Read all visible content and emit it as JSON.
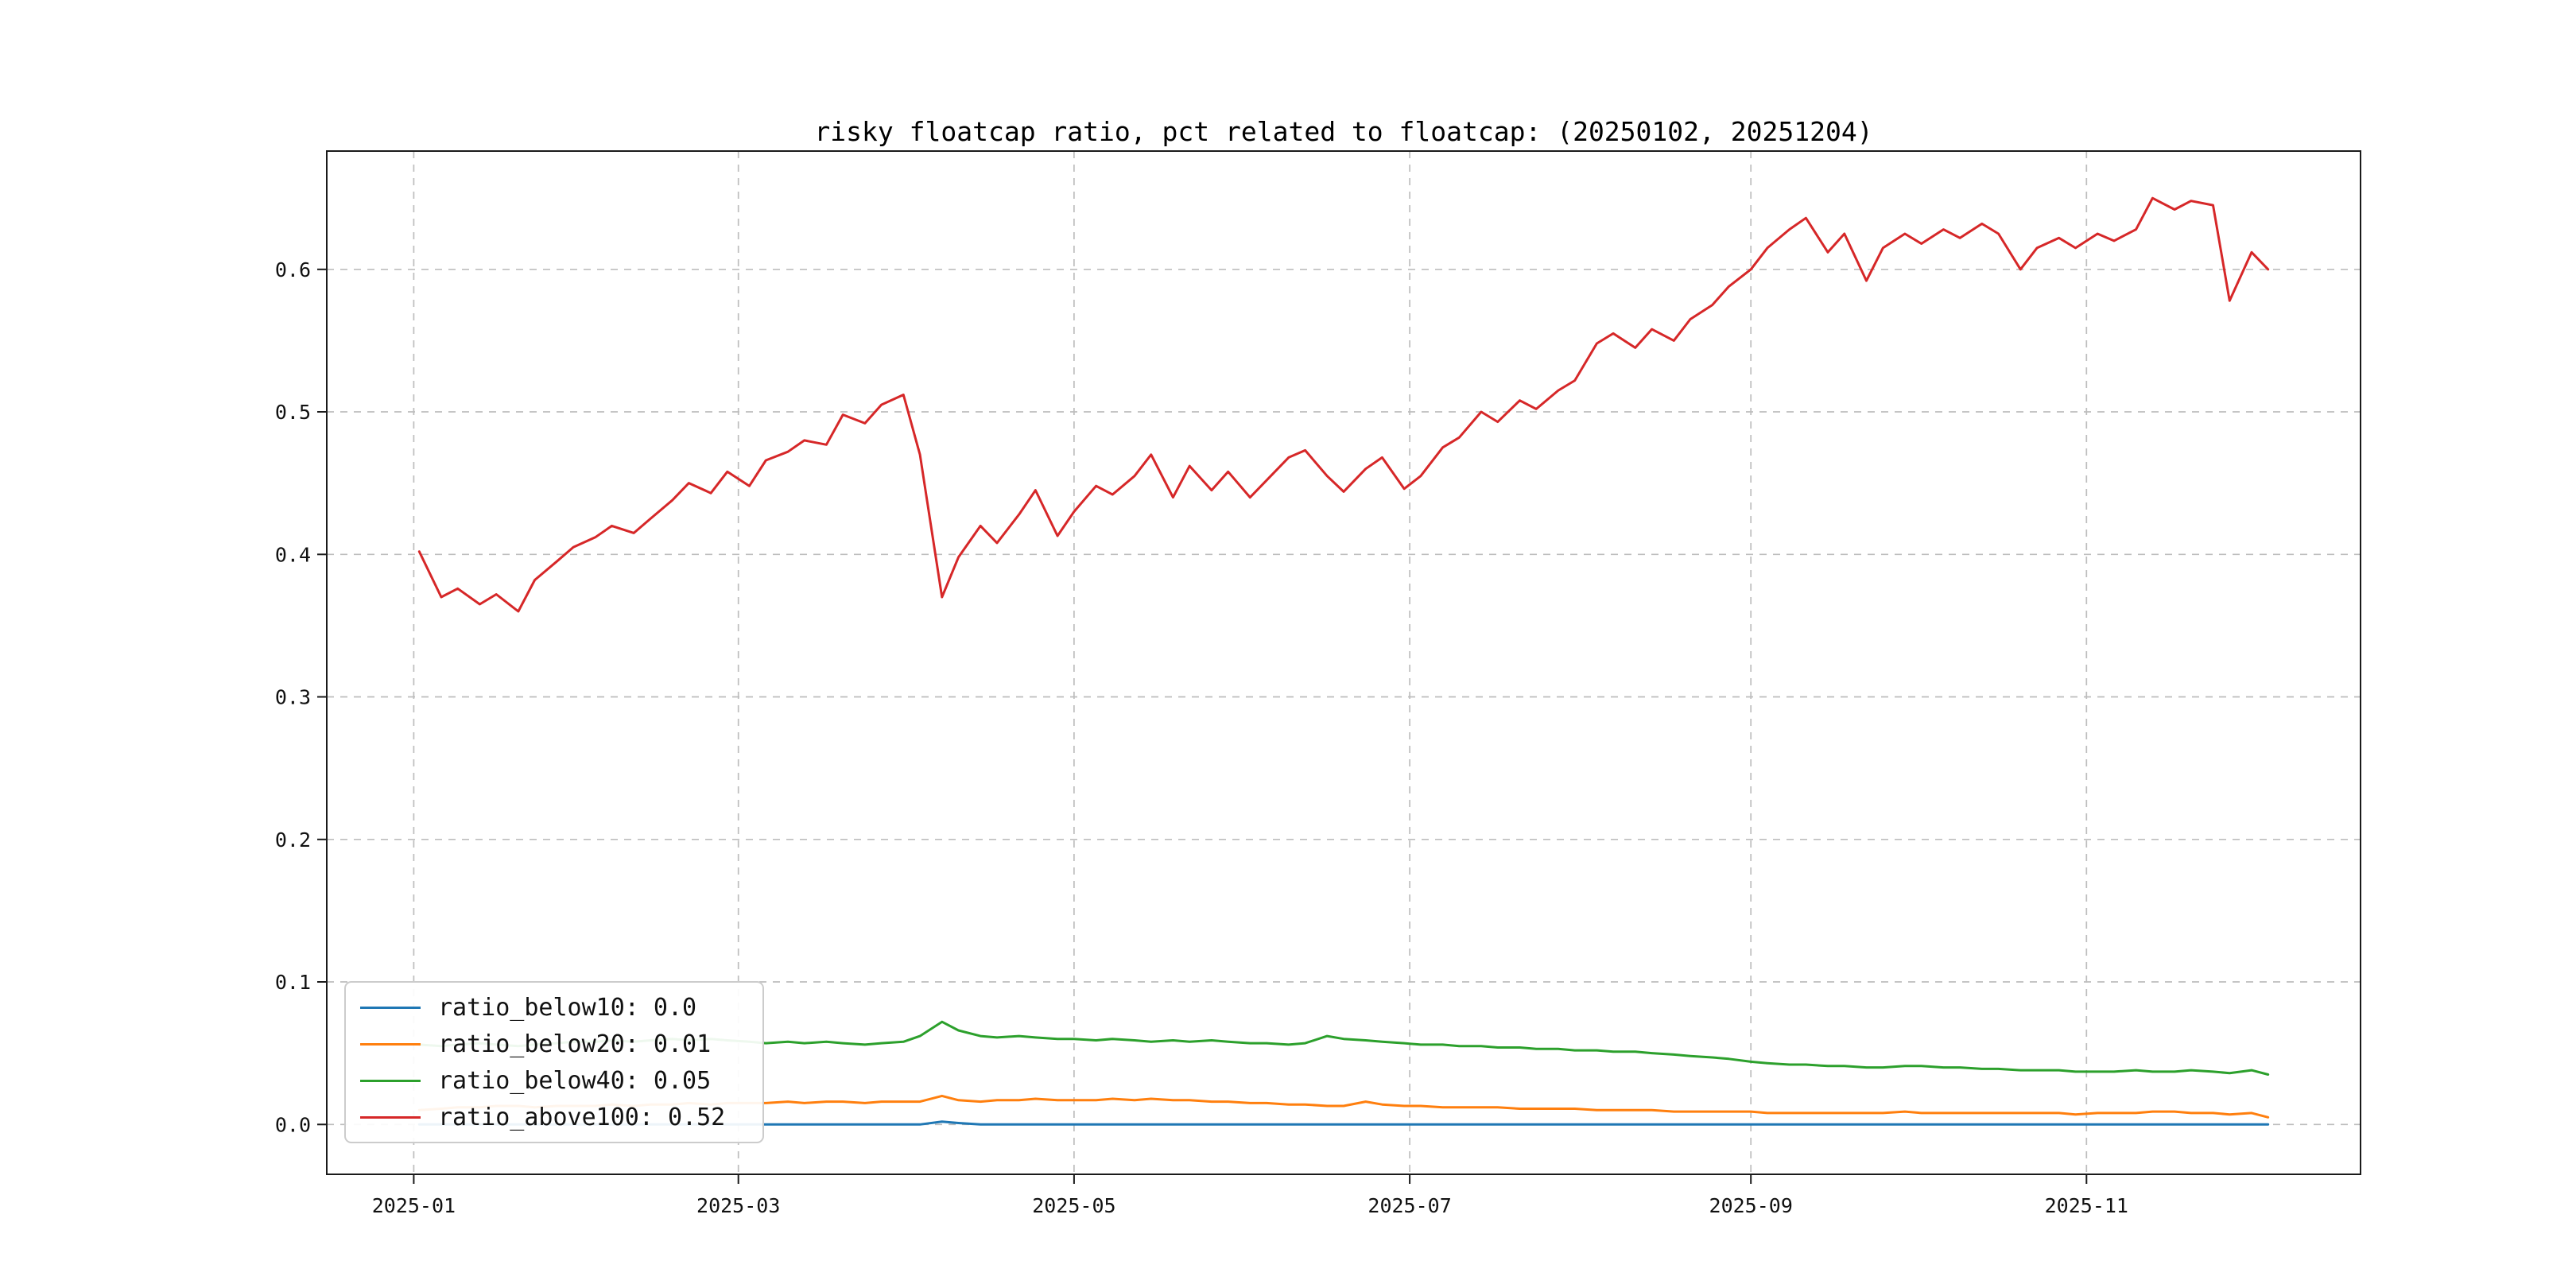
{
  "page": {
    "background": "#ffffff"
  },
  "chart_data": {
    "type": "line",
    "title": "risky floatcap ratio, pct related to floatcap: (20250102, 20251204)",
    "xlabel": "",
    "ylabel": "",
    "grid": true,
    "legend_position": "lower-left",
    "x_tick_labels": [
      "2025-01",
      "2025-03",
      "2025-05",
      "2025-07",
      "2025-09",
      "2025-11"
    ],
    "x_tick_days": [
      1,
      60,
      121,
      182,
      244,
      305
    ],
    "y_ticks": [
      0.0,
      0.1,
      0.2,
      0.3,
      0.4,
      0.5,
      0.6
    ],
    "y_tick_labels": [
      "0.0",
      "0.1",
      "0.2",
      "0.3",
      "0.4",
      "0.5",
      "0.6"
    ],
    "xlim_days": [
      -14.8,
      354.8
    ],
    "ylim": [
      -0.035,
      0.683
    ],
    "x_dates": [
      "2025-01-02",
      "2025-01-06",
      "2025-01-09",
      "2025-01-13",
      "2025-01-16",
      "2025-01-20",
      "2025-01-23",
      "2025-01-27",
      "2025-01-30",
      "2025-02-03",
      "2025-02-06",
      "2025-02-10",
      "2025-02-13",
      "2025-02-17",
      "2025-02-20",
      "2025-02-24",
      "2025-02-27",
      "2025-03-03",
      "2025-03-06",
      "2025-03-10",
      "2025-03-13",
      "2025-03-17",
      "2025-03-20",
      "2025-03-24",
      "2025-03-27",
      "2025-03-31",
      "2025-04-03",
      "2025-04-07",
      "2025-04-10",
      "2025-04-14",
      "2025-04-17",
      "2025-04-21",
      "2025-04-24",
      "2025-04-28",
      "2025-05-01",
      "2025-05-05",
      "2025-05-08",
      "2025-05-12",
      "2025-05-15",
      "2025-05-19",
      "2025-05-22",
      "2025-05-26",
      "2025-05-29",
      "2025-06-02",
      "2025-06-05",
      "2025-06-09",
      "2025-06-12",
      "2025-06-16",
      "2025-06-19",
      "2025-06-23",
      "2025-06-26",
      "2025-06-30",
      "2025-07-03",
      "2025-07-07",
      "2025-07-10",
      "2025-07-14",
      "2025-07-17",
      "2025-07-21",
      "2025-07-24",
      "2025-07-28",
      "2025-07-31",
      "2025-08-04",
      "2025-08-07",
      "2025-08-11",
      "2025-08-14",
      "2025-08-18",
      "2025-08-21",
      "2025-08-25",
      "2025-08-28",
      "2025-09-01",
      "2025-09-04",
      "2025-09-08",
      "2025-09-11",
      "2025-09-15",
      "2025-09-18",
      "2025-09-22",
      "2025-09-25",
      "2025-09-29",
      "2025-10-02",
      "2025-10-06",
      "2025-10-09",
      "2025-10-13",
      "2025-10-16",
      "2025-10-20",
      "2025-10-23",
      "2025-10-27",
      "2025-10-30",
      "2025-11-03",
      "2025-11-06",
      "2025-11-10",
      "2025-11-13",
      "2025-11-17",
      "2025-11-20",
      "2025-11-24",
      "2025-11-27",
      "2025-12-01",
      "2025-12-04"
    ],
    "series": [
      {
        "name": "ratio_below10",
        "legend_label": "ratio_below10: 0.0",
        "color": "#1f77b4",
        "values": [
          0.0,
          0.0,
          0.0,
          0.0,
          0.0,
          0.0,
          0.0,
          0.0,
          0.0,
          0.0,
          0.0,
          0.0,
          0.0,
          0.0,
          0.0,
          0.0,
          0.0,
          0.0,
          0.0,
          0.0,
          0.0,
          0.0,
          0.0,
          0.0,
          0.0,
          0.0,
          0.0,
          0.002,
          0.001,
          0.0,
          0.0,
          0.0,
          0.0,
          0.0,
          0.0,
          0.0,
          0.0,
          0.0,
          0.0,
          0.0,
          0.0,
          0.0,
          0.0,
          0.0,
          0.0,
          0.0,
          0.0,
          0.0,
          0.0,
          0.0,
          0.0,
          0.0,
          0.0,
          0.0,
          0.0,
          0.0,
          0.0,
          0.0,
          0.0,
          0.0,
          0.0,
          0.0,
          0.0,
          0.0,
          0.0,
          0.0,
          0.0,
          0.0,
          0.0,
          0.0,
          0.0,
          0.0,
          0.0,
          0.0,
          0.0,
          0.0,
          0.0,
          0.0,
          0.0,
          0.0,
          0.0,
          0.0,
          0.0,
          0.0,
          0.0,
          0.0,
          0.0,
          0.0,
          0.0,
          0.0,
          0.0,
          0.0,
          0.0,
          0.0,
          0.0,
          0.0,
          0.0
        ]
      },
      {
        "name": "ratio_below20",
        "legend_label": "ratio_below20: 0.01",
        "color": "#ff7f0e",
        "values": [
          0.01,
          0.011,
          0.012,
          0.012,
          0.013,
          0.013,
          0.012,
          0.013,
          0.013,
          0.013,
          0.014,
          0.013,
          0.014,
          0.014,
          0.015,
          0.014,
          0.015,
          0.015,
          0.015,
          0.016,
          0.015,
          0.016,
          0.016,
          0.015,
          0.016,
          0.016,
          0.016,
          0.02,
          0.017,
          0.016,
          0.017,
          0.017,
          0.018,
          0.017,
          0.017,
          0.017,
          0.018,
          0.017,
          0.018,
          0.017,
          0.017,
          0.016,
          0.016,
          0.015,
          0.015,
          0.014,
          0.014,
          0.013,
          0.013,
          0.016,
          0.014,
          0.013,
          0.013,
          0.012,
          0.012,
          0.012,
          0.012,
          0.011,
          0.011,
          0.011,
          0.011,
          0.01,
          0.01,
          0.01,
          0.01,
          0.009,
          0.009,
          0.009,
          0.009,
          0.009,
          0.008,
          0.008,
          0.008,
          0.008,
          0.008,
          0.008,
          0.008,
          0.009,
          0.008,
          0.008,
          0.008,
          0.008,
          0.008,
          0.008,
          0.008,
          0.008,
          0.007,
          0.008,
          0.008,
          0.008,
          0.009,
          0.009,
          0.008,
          0.008,
          0.007,
          0.008,
          0.005
        ]
      },
      {
        "name": "ratio_below40",
        "legend_label": "ratio_below40: 0.05",
        "color": "#2ca02c",
        "values": [
          0.056,
          0.055,
          0.056,
          0.057,
          0.056,
          0.055,
          0.056,
          0.057,
          0.058,
          0.058,
          0.059,
          0.058,
          0.059,
          0.06,
          0.059,
          0.06,
          0.059,
          0.058,
          0.057,
          0.058,
          0.057,
          0.058,
          0.057,
          0.056,
          0.057,
          0.058,
          0.062,
          0.072,
          0.066,
          0.062,
          0.061,
          0.062,
          0.061,
          0.06,
          0.06,
          0.059,
          0.06,
          0.059,
          0.058,
          0.059,
          0.058,
          0.059,
          0.058,
          0.057,
          0.057,
          0.056,
          0.057,
          0.062,
          0.06,
          0.059,
          0.058,
          0.057,
          0.056,
          0.056,
          0.055,
          0.055,
          0.054,
          0.054,
          0.053,
          0.053,
          0.052,
          0.052,
          0.051,
          0.051,
          0.05,
          0.049,
          0.048,
          0.047,
          0.046,
          0.044,
          0.043,
          0.042,
          0.042,
          0.041,
          0.041,
          0.04,
          0.04,
          0.041,
          0.041,
          0.04,
          0.04,
          0.039,
          0.039,
          0.038,
          0.038,
          0.038,
          0.037,
          0.037,
          0.037,
          0.038,
          0.037,
          0.037,
          0.038,
          0.037,
          0.036,
          0.038,
          0.035
        ]
      },
      {
        "name": "ratio_above100",
        "legend_label": "ratio_above100: 0.52",
        "color": "#d62728",
        "values": [
          0.402,
          0.37,
          0.376,
          0.365,
          0.372,
          0.36,
          0.382,
          0.395,
          0.405,
          0.412,
          0.42,
          0.415,
          0.425,
          0.438,
          0.45,
          0.443,
          0.458,
          0.448,
          0.466,
          0.472,
          0.48,
          0.477,
          0.498,
          0.492,
          0.505,
          0.512,
          0.47,
          0.37,
          0.398,
          0.42,
          0.408,
          0.428,
          0.445,
          0.413,
          0.43,
          0.448,
          0.442,
          0.455,
          0.47,
          0.44,
          0.462,
          0.445,
          0.458,
          0.44,
          0.452,
          0.468,
          0.473,
          0.455,
          0.444,
          0.46,
          0.468,
          0.446,
          0.455,
          0.475,
          0.482,
          0.5,
          0.493,
          0.508,
          0.502,
          0.515,
          0.522,
          0.548,
          0.555,
          0.545,
          0.558,
          0.55,
          0.565,
          0.575,
          0.588,
          0.6,
          0.615,
          0.628,
          0.636,
          0.612,
          0.625,
          0.592,
          0.615,
          0.625,
          0.618,
          0.628,
          0.622,
          0.632,
          0.625,
          0.6,
          0.615,
          0.622,
          0.615,
          0.625,
          0.62,
          0.628,
          0.65,
          0.642,
          0.648,
          0.645,
          0.578,
          0.612,
          0.6
        ]
      }
    ]
  }
}
